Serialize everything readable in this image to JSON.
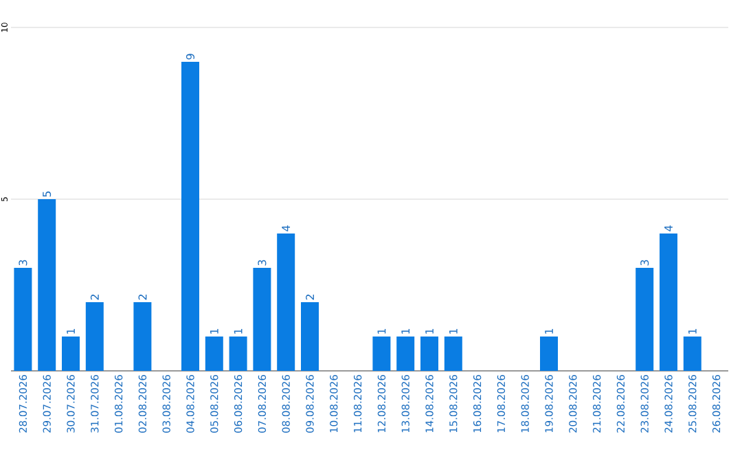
{
  "chart_data": {
    "type": "bar",
    "categories": [
      "28.07.2026",
      "29.07.2026",
      "30.07.2026",
      "31.07.2026",
      "01.08.2026",
      "02.08.2026",
      "03.08.2026",
      "04.08.2026",
      "05.08.2026",
      "06.08.2026",
      "07.08.2026",
      "08.08.2026",
      "09.08.2026",
      "10.08.2026",
      "11.08.2026",
      "12.08.2026",
      "13.08.2026",
      "14.08.2026",
      "15.08.2026",
      "16.08.2026",
      "17.08.2026",
      "18.08.2026",
      "19.08.2026",
      "20.08.2026",
      "21.08.2026",
      "22.08.2026",
      "23.08.2026",
      "24.08.2026",
      "25.08.2026",
      "26.08.2026"
    ],
    "values": [
      3,
      5,
      1,
      2,
      0,
      2,
      0,
      9,
      1,
      1,
      3,
      4,
      2,
      0,
      0,
      1,
      1,
      1,
      1,
      0,
      0,
      0,
      1,
      0,
      0,
      0,
      3,
      4,
      1,
      0
    ],
    "value_labels": [
      "3",
      "5",
      "1",
      "2",
      null,
      "2",
      null,
      "9",
      "1",
      "1",
      "3",
      "4",
      "2",
      null,
      null,
      "1",
      "1",
      "1",
      "1",
      null,
      null,
      null,
      "1",
      null,
      null,
      null,
      "3",
      "4",
      "1",
      null
    ],
    "color": "#0a7de3",
    "ylim": [
      0,
      10
    ],
    "yticks": [
      5,
      10
    ],
    "grid": "y"
  }
}
